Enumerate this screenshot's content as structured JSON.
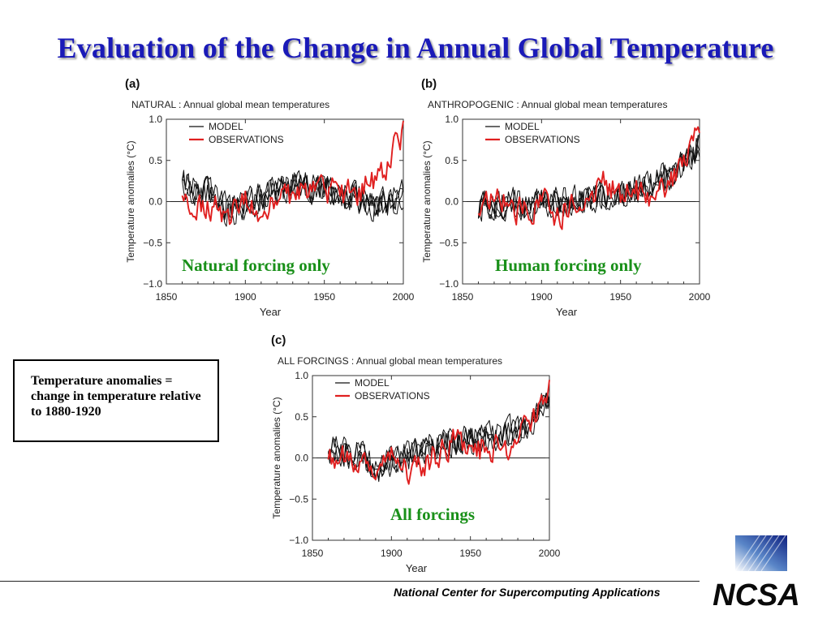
{
  "slide": {
    "title": "Evaluation of the Change in Annual Global Temperature",
    "note": "Temperature anomalies = change in temperature relative to 1880-1920",
    "footer": "National Center for Supercomputing Applications",
    "logo_text": "NCSA"
  },
  "overlay_labels": [
    "Natural forcing only",
    "Human forcing only",
    "All forcings"
  ],
  "colors": {
    "title": "#1a1ab8",
    "overlay": "#199019",
    "model": "#111111",
    "observations": "#e02020"
  },
  "chart_data": [
    {
      "type": "line",
      "panel_label": "(a)",
      "title": "NATURAL : Annual global mean temperatures",
      "xlabel": "Year",
      "ylabel": "Temperature anomalies (°C)",
      "xlim": [
        1850,
        2000
      ],
      "ylim": [
        -1.0,
        1.0
      ],
      "xticks": [
        1850,
        1900,
        1950,
        2000
      ],
      "yticks": [
        -1.0,
        -0.5,
        0.0,
        0.5,
        1.0
      ],
      "ytick_labels": [
        "−1.0",
        "−0.5",
        "0.0",
        "0.5",
        "1.0"
      ],
      "legend": {
        "position": "top-left",
        "entries": [
          "MODEL",
          "OBSERVATIONS"
        ]
      },
      "zero_line": true,
      "series": [
        {
          "name": "MODEL",
          "ensemble_members": 4,
          "color": "#111111",
          "x": [
            1860,
            1870,
            1880,
            1890,
            1900,
            1910,
            1920,
            1930,
            1940,
            1950,
            1960,
            1970,
            1980,
            1990,
            2000
          ],
          "y": [
            0.22,
            0.15,
            0.08,
            -0.12,
            -0.05,
            0.05,
            0.1,
            0.2,
            0.18,
            0.15,
            0.08,
            0.05,
            -0.05,
            0.0,
            0.1
          ]
        },
        {
          "name": "OBSERVATIONS",
          "color": "#e02020",
          "x": [
            1860,
            1870,
            1880,
            1890,
            1900,
            1910,
            1920,
            1930,
            1940,
            1950,
            1960,
            1970,
            1980,
            1990,
            2000
          ],
          "y": [
            0.02,
            0.0,
            -0.05,
            -0.15,
            0.0,
            -0.15,
            -0.05,
            0.05,
            0.2,
            0.1,
            0.12,
            0.08,
            0.25,
            0.45,
            0.85
          ]
        }
      ]
    },
    {
      "type": "line",
      "panel_label": "(b)",
      "title": "ANTHROPOGENIC : Annual global mean temperatures",
      "xlabel": "Year",
      "ylabel": "Temperature anomalies (°C)",
      "xlim": [
        1850,
        2000
      ],
      "ylim": [
        -1.0,
        1.0
      ],
      "xticks": [
        1850,
        1900,
        1950,
        2000
      ],
      "yticks": [
        -1.0,
        -0.5,
        0.0,
        0.5,
        1.0
      ],
      "ytick_labels": [
        "−1.0",
        "−0.5",
        "0.0",
        "0.5",
        "1.0"
      ],
      "legend": {
        "position": "top-left",
        "entries": [
          "MODEL",
          "OBSERVATIONS"
        ]
      },
      "zero_line": true,
      "series": [
        {
          "name": "MODEL",
          "ensemble_members": 4,
          "color": "#111111",
          "x": [
            1860,
            1870,
            1880,
            1890,
            1900,
            1910,
            1920,
            1930,
            1940,
            1950,
            1960,
            1970,
            1980,
            1990,
            2000
          ],
          "y": [
            -0.05,
            -0.05,
            0.0,
            -0.05,
            0.0,
            0.0,
            0.02,
            0.05,
            0.08,
            0.1,
            0.15,
            0.22,
            0.3,
            0.45,
            0.7
          ]
        },
        {
          "name": "OBSERVATIONS",
          "color": "#e02020",
          "x": [
            1860,
            1870,
            1880,
            1890,
            1900,
            1910,
            1920,
            1930,
            1940,
            1950,
            1960,
            1970,
            1980,
            1990,
            2000
          ],
          "y": [
            0.0,
            0.02,
            -0.05,
            -0.15,
            0.0,
            -0.15,
            -0.05,
            0.05,
            0.2,
            0.1,
            0.12,
            0.08,
            0.25,
            0.45,
            0.85
          ]
        }
      ]
    },
    {
      "type": "line",
      "panel_label": "(c)",
      "title": "ALL FORCINGS : Annual global mean temperatures",
      "xlabel": "Year",
      "ylabel": "Temperature anomalies (°C)",
      "xlim": [
        1850,
        2000
      ],
      "ylim": [
        -1.0,
        1.0
      ],
      "xticks": [
        1850,
        1900,
        1950,
        2000
      ],
      "yticks": [
        -1.0,
        -0.5,
        0.0,
        0.5,
        1.0
      ],
      "ytick_labels": [
        "−1.0",
        "−0.5",
        "0.0",
        "0.5",
        "1.0"
      ],
      "legend": {
        "position": "top-left",
        "entries": [
          "MODEL",
          "OBSERVATIONS"
        ]
      },
      "zero_line": true,
      "series": [
        {
          "name": "MODEL",
          "ensemble_members": 4,
          "color": "#111111",
          "x": [
            1860,
            1870,
            1880,
            1890,
            1900,
            1910,
            1920,
            1930,
            1940,
            1950,
            1960,
            1970,
            1980,
            1990,
            2000
          ],
          "y": [
            0.1,
            0.08,
            0.05,
            -0.15,
            -0.05,
            0.02,
            0.08,
            0.15,
            0.2,
            0.22,
            0.25,
            0.25,
            0.35,
            0.45,
            0.7
          ]
        },
        {
          "name": "OBSERVATIONS",
          "color": "#e02020",
          "x": [
            1860,
            1870,
            1880,
            1890,
            1900,
            1910,
            1920,
            1930,
            1940,
            1950,
            1960,
            1970,
            1980,
            1990,
            2000
          ],
          "y": [
            0.0,
            0.02,
            -0.05,
            -0.15,
            0.0,
            -0.15,
            -0.05,
            0.05,
            0.2,
            0.1,
            0.12,
            0.08,
            0.25,
            0.45,
            0.85
          ]
        }
      ]
    }
  ]
}
